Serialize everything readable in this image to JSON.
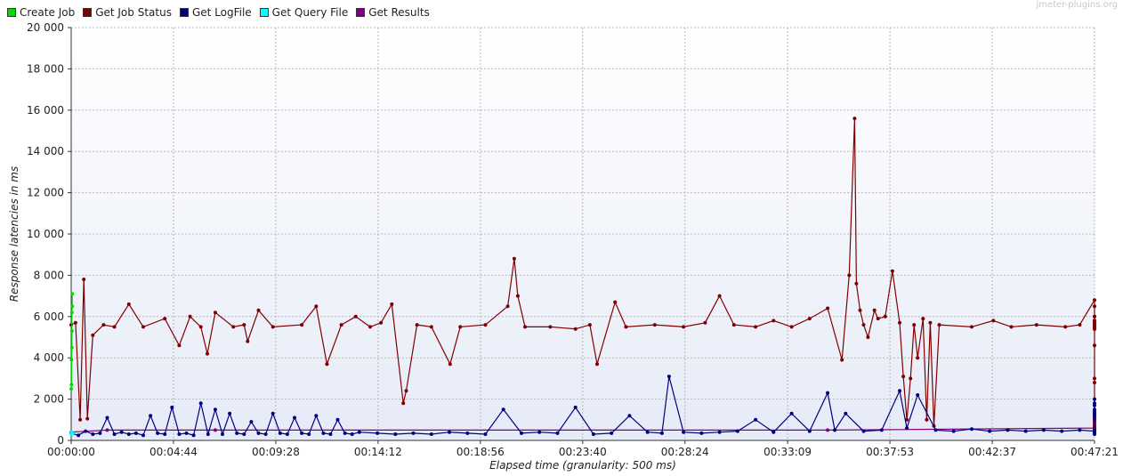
{
  "watermark": "jmeter-plugins.org",
  "chart_data": {
    "type": "line",
    "xlabel": "Elapsed time (granularity: 500 ms)",
    "ylabel": "Response latencies in ms",
    "ylim": [
      0,
      20000
    ],
    "y_ticks": [
      0,
      2000,
      4000,
      6000,
      8000,
      10000,
      12000,
      14000,
      16000,
      18000,
      20000
    ],
    "y_tick_labels": [
      "0",
      "2 000",
      "4 000",
      "6 000",
      "8 000",
      "10 000",
      "12 000",
      "14 000",
      "16 000",
      "18 000",
      "20 000"
    ],
    "x_range_seconds": [
      0,
      2841
    ],
    "x_ticks_seconds": [
      0,
      284,
      568,
      852,
      1136,
      1420,
      1704,
      1989,
      2273,
      2557,
      2841
    ],
    "x_tick_labels": [
      "00:00:00",
      "00:04:44",
      "00:09:28",
      "00:14:12",
      "00:18:56",
      "00:23:40",
      "00:28:24",
      "00:33:09",
      "00:37:53",
      "00:42:37",
      "00:47:21"
    ],
    "grid": true,
    "legend_position": "top-left",
    "series": [
      {
        "name": "Create Job",
        "color": "#00dd00",
        "points": [
          [
            0,
            2500
          ],
          [
            1,
            2700
          ],
          [
            1,
            3900
          ],
          [
            2,
            4500
          ],
          [
            2,
            5300
          ],
          [
            2,
            6200
          ],
          [
            3,
            6500
          ],
          [
            3,
            7100
          ]
        ]
      },
      {
        "name": "Get Job Status",
        "color": "#800000",
        "points": [
          [
            0,
            5600
          ],
          [
            12,
            5700
          ],
          [
            25,
            1000
          ],
          [
            35,
            7800
          ],
          [
            45,
            1050
          ],
          [
            60,
            5100
          ],
          [
            90,
            5600
          ],
          [
            120,
            5500
          ],
          [
            160,
            6600
          ],
          [
            200,
            5500
          ],
          [
            260,
            5900
          ],
          [
            300,
            4600
          ],
          [
            330,
            6000
          ],
          [
            360,
            5500
          ],
          [
            378,
            4200
          ],
          [
            400,
            6200
          ],
          [
            450,
            5500
          ],
          [
            480,
            5600
          ],
          [
            490,
            4800
          ],
          [
            520,
            6300
          ],
          [
            560,
            5500
          ],
          [
            640,
            5600
          ],
          [
            680,
            6500
          ],
          [
            710,
            3700
          ],
          [
            750,
            5600
          ],
          [
            790,
            6000
          ],
          [
            830,
            5500
          ],
          [
            860,
            5700
          ],
          [
            890,
            6600
          ],
          [
            922,
            1800
          ],
          [
            930,
            2400
          ],
          [
            960,
            5600
          ],
          [
            1000,
            5500
          ],
          [
            1052,
            3700
          ],
          [
            1080,
            5500
          ],
          [
            1150,
            5600
          ],
          [
            1212,
            6500
          ],
          [
            1230,
            8800
          ],
          [
            1240,
            7000
          ],
          [
            1260,
            5500
          ],
          [
            1330,
            5500
          ],
          [
            1400,
            5400
          ],
          [
            1440,
            5600
          ],
          [
            1460,
            3700
          ],
          [
            1510,
            6700
          ],
          [
            1540,
            5500
          ],
          [
            1620,
            5600
          ],
          [
            1700,
            5500
          ],
          [
            1760,
            5700
          ],
          [
            1800,
            7000
          ],
          [
            1840,
            5600
          ],
          [
            1900,
            5500
          ],
          [
            1950,
            5800
          ],
          [
            2000,
            5500
          ],
          [
            2050,
            5900
          ],
          [
            2100,
            6400
          ],
          [
            2140,
            3900
          ],
          [
            2160,
            8000
          ],
          [
            2175,
            15600
          ],
          [
            2180,
            7600
          ],
          [
            2190,
            6300
          ],
          [
            2200,
            5600
          ],
          [
            2212,
            5000
          ],
          [
            2230,
            6300
          ],
          [
            2240,
            5900
          ],
          [
            2260,
            6000
          ],
          [
            2280,
            8200
          ],
          [
            2300,
            5700
          ],
          [
            2310,
            3100
          ],
          [
            2320,
            1000
          ],
          [
            2330,
            3000
          ],
          [
            2340,
            5600
          ],
          [
            2350,
            4000
          ],
          [
            2365,
            5900
          ],
          [
            2375,
            1000
          ],
          [
            2385,
            5700
          ],
          [
            2395,
            700
          ],
          [
            2410,
            5600
          ],
          [
            2500,
            5500
          ],
          [
            2560,
            5800
          ],
          [
            2610,
            5500
          ],
          [
            2680,
            5600
          ],
          [
            2760,
            5500
          ],
          [
            2800,
            5600
          ],
          [
            2850,
            6800
          ],
          [
            2870,
            5500
          ],
          [
            2900,
            5800
          ],
          [
            2950,
            5600
          ],
          [
            3020,
            6000
          ],
          [
            3100,
            5500
          ],
          [
            3180,
            5600
          ],
          [
            3280,
            5500
          ],
          [
            3350,
            5600
          ],
          [
            3400,
            6500
          ],
          [
            3430,
            5500
          ],
          [
            3470,
            5600
          ],
          [
            3520,
            5500
          ],
          [
            3560,
            5600
          ],
          [
            3600,
            5500
          ],
          [
            3640,
            5600
          ],
          [
            3680,
            5500
          ],
          [
            3730,
            5600
          ],
          [
            3775,
            5600
          ],
          [
            3790,
            2800
          ],
          [
            3797,
            700
          ],
          [
            3810,
            5600
          ],
          [
            3820,
            3000
          ],
          [
            3830,
            5800
          ],
          [
            3838,
            5500
          ],
          [
            3845,
            900
          ],
          [
            3855,
            5500
          ],
          [
            3870,
            5800
          ],
          [
            3880,
            700
          ],
          [
            3890,
            5700
          ],
          [
            3900,
            1000
          ],
          [
            3910,
            5600
          ],
          [
            3920,
            5700
          ],
          [
            3950,
            5500
          ],
          [
            4000,
            5600
          ],
          [
            4080,
            5500
          ],
          [
            4160,
            5600
          ],
          [
            4240,
            5500
          ],
          [
            4320,
            5600
          ],
          [
            4400,
            5500
          ],
          [
            4460,
            5600
          ],
          [
            4480,
            5500
          ],
          [
            4520,
            5600
          ],
          [
            4560,
            5500
          ],
          [
            4600,
            5600
          ],
          [
            4700,
            6000
          ],
          [
            4760,
            5500
          ],
          [
            4820,
            5600
          ],
          [
            4870,
            5500
          ],
          [
            4930,
            5600
          ],
          [
            5000,
            5500
          ],
          [
            5060,
            5600
          ],
          [
            5120,
            5500
          ],
          [
            5160,
            5400
          ],
          [
            5200,
            5500
          ],
          [
            5260,
            5600
          ],
          [
            5300,
            5500
          ],
          [
            5340,
            5400
          ],
          [
            5360,
            5500
          ],
          [
            5390,
            5400
          ],
          [
            5440,
            5500
          ],
          [
            5480,
            5600
          ],
          [
            5540,
            5500
          ],
          [
            5580,
            5400
          ],
          [
            5600,
            5600
          ],
          [
            5640,
            5500
          ],
          [
            5665,
            5600
          ],
          [
            5680,
            5500
          ],
          [
            5700,
            4600
          ],
          [
            5720,
            1200
          ],
          [
            5735,
            600
          ],
          [
            5750,
            1200
          ],
          [
            5760,
            500
          ],
          [
            5775,
            1300
          ],
          [
            5780,
            600
          ]
        ]
      },
      {
        "name": "Get LogFile",
        "color": "#000080",
        "points": [
          [
            0,
            350
          ],
          [
            20,
            250
          ],
          [
            40,
            450
          ],
          [
            60,
            300
          ],
          [
            80,
            350
          ],
          [
            100,
            1100
          ],
          [
            120,
            300
          ],
          [
            140,
            400
          ],
          [
            160,
            300
          ],
          [
            180,
            350
          ],
          [
            200,
            250
          ],
          [
            220,
            1200
          ],
          [
            240,
            350
          ],
          [
            260,
            300
          ],
          [
            280,
            1600
          ],
          [
            300,
            300
          ],
          [
            320,
            350
          ],
          [
            340,
            250
          ],
          [
            360,
            1800
          ],
          [
            380,
            300
          ],
          [
            400,
            1500
          ],
          [
            420,
            300
          ],
          [
            440,
            1300
          ],
          [
            460,
            350
          ],
          [
            480,
            300
          ],
          [
            500,
            900
          ],
          [
            520,
            350
          ],
          [
            540,
            300
          ],
          [
            560,
            1300
          ],
          [
            580,
            350
          ],
          [
            600,
            300
          ],
          [
            620,
            1100
          ],
          [
            640,
            350
          ],
          [
            660,
            300
          ],
          [
            680,
            1200
          ],
          [
            700,
            350
          ],
          [
            720,
            300
          ],
          [
            740,
            1000
          ],
          [
            760,
            350
          ],
          [
            780,
            300
          ],
          [
            800,
            400
          ],
          [
            850,
            350
          ],
          [
            900,
            300
          ],
          [
            950,
            350
          ],
          [
            1000,
            300
          ],
          [
            1050,
            400
          ],
          [
            1100,
            350
          ],
          [
            1150,
            300
          ],
          [
            1200,
            1500
          ],
          [
            1250,
            350
          ],
          [
            1300,
            400
          ],
          [
            1350,
            350
          ],
          [
            1400,
            1600
          ],
          [
            1450,
            300
          ],
          [
            1500,
            350
          ],
          [
            1550,
            1200
          ],
          [
            1600,
            400
          ],
          [
            1640,
            350
          ],
          [
            1660,
            3100
          ],
          [
            1700,
            400
          ],
          [
            1750,
            350
          ],
          [
            1800,
            400
          ],
          [
            1850,
            450
          ],
          [
            1900,
            1000
          ],
          [
            1950,
            400
          ],
          [
            2000,
            1300
          ],
          [
            2050,
            450
          ],
          [
            2100,
            2300
          ],
          [
            2120,
            500
          ],
          [
            2150,
            1300
          ],
          [
            2200,
            450
          ],
          [
            2250,
            500
          ],
          [
            2300,
            2400
          ],
          [
            2320,
            600
          ],
          [
            2350,
            2200
          ],
          [
            2400,
            500
          ],
          [
            2450,
            450
          ],
          [
            2500,
            550
          ],
          [
            2550,
            450
          ],
          [
            2600,
            500
          ],
          [
            2650,
            450
          ],
          [
            2700,
            500
          ],
          [
            2750,
            450
          ],
          [
            2800,
            500
          ],
          [
            2850,
            450
          ],
          [
            2900,
            500
          ],
          [
            2950,
            1800
          ],
          [
            3000,
            450
          ],
          [
            3050,
            1300
          ],
          [
            3100,
            500
          ],
          [
            3150,
            1500
          ],
          [
            3200,
            450
          ],
          [
            3250,
            500
          ],
          [
            3300,
            450
          ],
          [
            3350,
            500
          ],
          [
            3400,
            2000
          ],
          [
            3450,
            450
          ],
          [
            3500,
            500
          ],
          [
            3550,
            450
          ],
          [
            3600,
            500
          ],
          [
            3650,
            450
          ],
          [
            3700,
            500
          ],
          [
            3750,
            1400
          ],
          [
            3800,
            450
          ],
          [
            3850,
            1300
          ],
          [
            3900,
            450
          ],
          [
            4000,
            500
          ],
          [
            4100,
            450
          ],
          [
            4200,
            500
          ],
          [
            4300,
            450
          ],
          [
            4400,
            500
          ],
          [
            4500,
            450
          ],
          [
            4600,
            1200
          ],
          [
            4700,
            450
          ],
          [
            4800,
            1100
          ],
          [
            4900,
            400
          ],
          [
            5000,
            450
          ],
          [
            5080,
            1700
          ],
          [
            5150,
            400
          ],
          [
            5250,
            450
          ],
          [
            5350,
            400
          ],
          [
            5450,
            450
          ],
          [
            5550,
            400
          ],
          [
            5650,
            300
          ],
          [
            5700,
            450
          ],
          [
            5782,
            500
          ]
        ]
      },
      {
        "name": "Get Query File",
        "color": "#00ffff",
        "points": [
          [
            0,
            300
          ],
          [
            1,
            400
          ],
          [
            2,
            350
          ],
          [
            3,
            300
          ]
        ]
      },
      {
        "name": "Get Results",
        "color": "#800080",
        "points": [
          [
            0,
            400
          ],
          [
            100,
            500
          ],
          [
            400,
            500
          ],
          [
            2100,
            500
          ],
          [
            3250,
            600
          ],
          [
            3400,
            600
          ],
          [
            3550,
            1300
          ],
          [
            4100,
            1000
          ],
          [
            4500,
            800
          ],
          [
            5000,
            600
          ],
          [
            5650,
            400
          ],
          [
            5782,
            550
          ]
        ]
      }
    ]
  }
}
